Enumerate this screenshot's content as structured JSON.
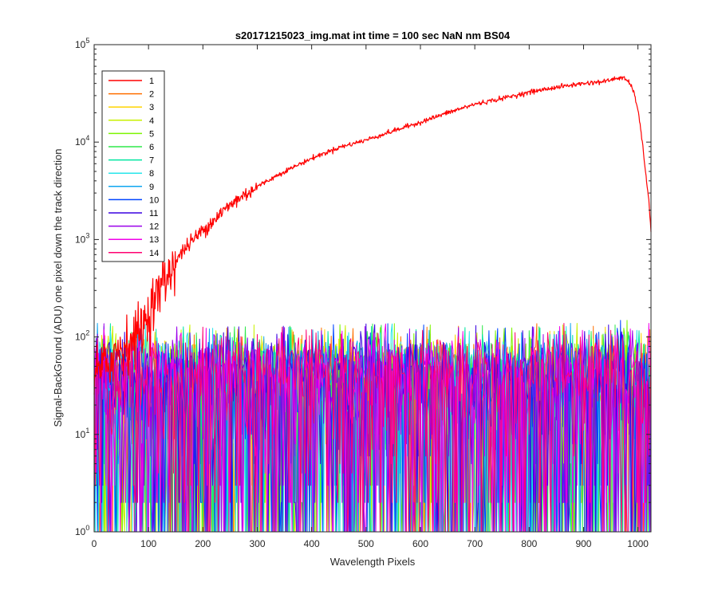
{
  "chart_data": {
    "type": "line",
    "title": "s20171215023_img.mat int time = 100 sec  NaN nm BS04",
    "xlabel": "Wavelength Pixels",
    "ylabel": "Signal-BackGround (ADU) one pixel down the track direction",
    "xlim": [
      0,
      1024
    ],
    "ylim": [
      1,
      100000
    ],
    "yscale": "log",
    "x_ticks": [
      "0",
      "100",
      "200",
      "300",
      "400",
      "500",
      "600",
      "700",
      "800",
      "900",
      "1000"
    ],
    "y_ticks": [
      {
        "base": "10",
        "exp": "0"
      },
      {
        "base": "10",
        "exp": "1"
      },
      {
        "base": "10",
        "exp": "2"
      },
      {
        "base": "10",
        "exp": "3"
      },
      {
        "base": "10",
        "exp": "4"
      },
      {
        "base": "10",
        "exp": "5"
      }
    ],
    "grid": false,
    "legend_position": "top-left",
    "series": [
      {
        "name": "1",
        "color": "#ff0000",
        "x": [
          0,
          20,
          40,
          60,
          70,
          80,
          90,
          100,
          110,
          120,
          130,
          140,
          150,
          170,
          200,
          230,
          260,
          300,
          350,
          400,
          450,
          500,
          550,
          600,
          650,
          700,
          750,
          800,
          850,
          900,
          940,
          960,
          970,
          980,
          990,
          1000,
          1010,
          1020,
          1024
        ],
        "y": [
          40,
          50,
          70,
          85,
          95,
          110,
          130,
          170,
          230,
          300,
          380,
          480,
          600,
          850,
          1250,
          1800,
          2500,
          3500,
          5000,
          6800,
          8800,
          10500,
          13000,
          16000,
          20000,
          24500,
          28000,
          32500,
          36500,
          40000,
          42000,
          45000,
          46000,
          43000,
          36000,
          22000,
          8000,
          2500,
          1200
        ]
      },
      {
        "name": "2",
        "color": "#ff6f00",
        "noise_mean": 35
      },
      {
        "name": "3",
        "color": "#ffd400",
        "noise_mean": 33
      },
      {
        "name": "4",
        "color": "#c8f000",
        "noise_mean": 33
      },
      {
        "name": "5",
        "color": "#7cf500",
        "noise_mean": 33
      },
      {
        "name": "6",
        "color": "#2ee84a",
        "noise_mean": 33
      },
      {
        "name": "7",
        "color": "#00e6a0",
        "noise_mean": 33
      },
      {
        "name": "8",
        "color": "#27e5ea",
        "noise_mean": 33
      },
      {
        "name": "9",
        "color": "#0ea6f0",
        "noise_mean": 33
      },
      {
        "name": "10",
        "color": "#0044ff",
        "noise_mean": 33
      },
      {
        "name": "11",
        "color": "#3a00e0",
        "noise_mean": 35
      },
      {
        "name": "12",
        "color": "#9b00ea",
        "noise_mean": 35
      },
      {
        "name": "13",
        "color": "#f000e8",
        "noise_mean": 37
      },
      {
        "name": "14",
        "color": "#ff0070",
        "noise_mean": 38
      }
    ]
  }
}
